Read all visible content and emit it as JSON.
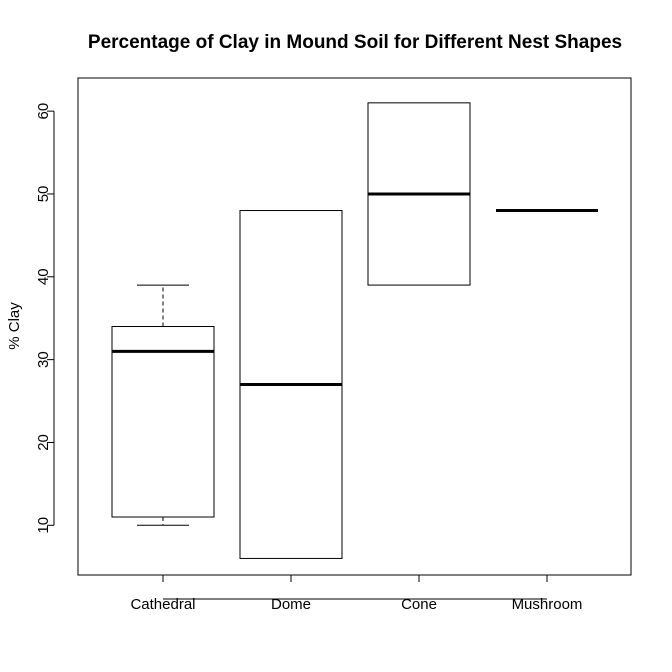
{
  "chart_data": {
    "type": "boxplot",
    "title": "Percentage of Clay in Mound Soil for Different Nest Shapes",
    "xlabel": "",
    "ylabel": "% Clay",
    "ylim": [
      4,
      64
    ],
    "yticks": [
      10,
      20,
      30,
      40,
      50,
      60
    ],
    "grid": false,
    "categories": [
      "Cathedral",
      "Dome",
      "Cone",
      "Mushroom"
    ],
    "boxes": [
      {
        "category": "Cathedral",
        "whisker_low": 10,
        "q1": 11,
        "median": 31,
        "q3": 34,
        "whisker_high": 39
      },
      {
        "category": "Dome",
        "whisker_low": 6,
        "q1": 6,
        "median": 27,
        "q3": 48,
        "whisker_high": 48
      },
      {
        "category": "Cone",
        "whisker_low": 39,
        "q1": 39,
        "median": 50,
        "q3": 61,
        "whisker_high": 61
      },
      {
        "category": "Mushroom",
        "whisker_low": 48,
        "q1": 48,
        "median": 48,
        "q3": 48,
        "whisker_high": 48
      }
    ]
  }
}
